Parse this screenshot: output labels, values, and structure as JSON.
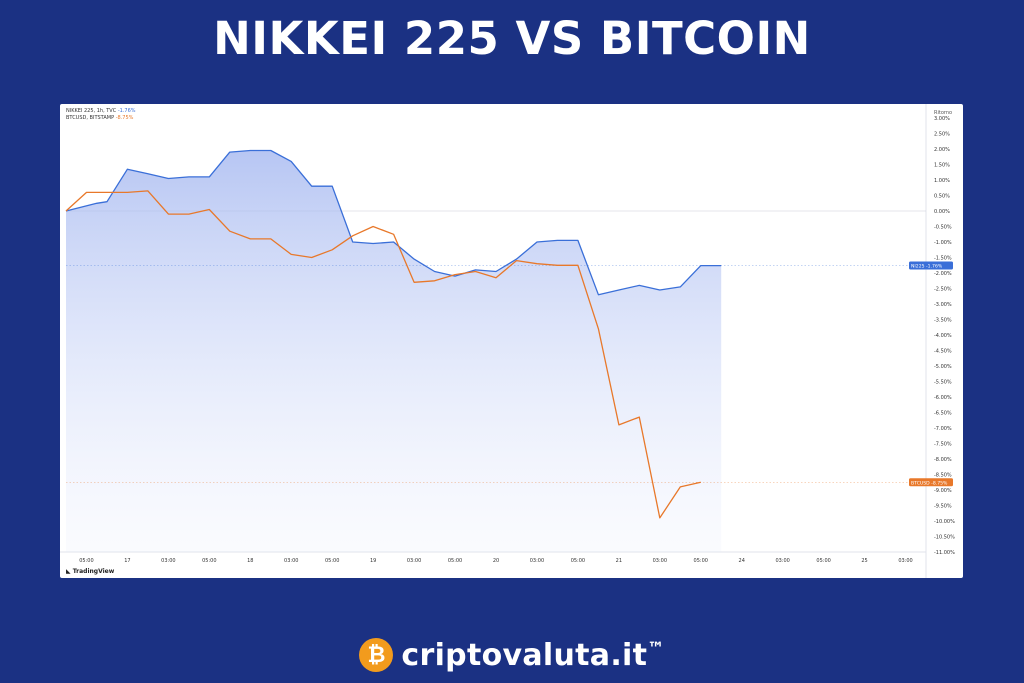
{
  "title": "NIKKEI 225 VS BITCOIN",
  "legend": {
    "series_a": "NIKKEI 225, 1h, TVC",
    "series_a_value": "-1.76%",
    "series_b": "BTCUSD, BITSTAMP",
    "series_b_value": "-8.75%"
  },
  "tv_label": "TradingView",
  "brand": {
    "name": "criptovaluta.it",
    "tm": "™",
    "icon": "bitcoin-coin-icon"
  },
  "colors": {
    "nikkei": "#3a6fd8",
    "bitcoin": "#e8782a",
    "background": "#1b3183"
  },
  "chart_data": {
    "type": "line",
    "x_ticks": [
      "05:00",
      "17",
      "03:00",
      "05:00",
      "18",
      "03:00",
      "05:00",
      "19",
      "03:00",
      "05:00",
      "20",
      "03:00",
      "05:00",
      "21",
      "03:00",
      "05:00",
      "24",
      "03:00",
      "05:00",
      "25",
      "03:00"
    ],
    "y_axis_title": "Ritorno",
    "ylim": [
      -11.0,
      3.0
    ],
    "y_ticks": [
      "3.00%",
      "2.50%",
      "2.00%",
      "1.50%",
      "1.00%",
      "0.50%",
      "0.00%",
      "-0.50%",
      "-1.00%",
      "-1.50%",
      "-2.00%",
      "-2.50%",
      "-3.00%",
      "-3.50%",
      "-4.00%",
      "-4.50%",
      "-5.00%",
      "-5.50%",
      "-6.00%",
      "-6.50%",
      "-7.00%",
      "-7.50%",
      "-8.00%",
      "-8.50%",
      "-9.00%",
      "-9.50%",
      "-10.00%",
      "-10.50%",
      "-11.00%"
    ],
    "x_tick_index": [
      1,
      3,
      5,
      7,
      9,
      11,
      13,
      15,
      17,
      19,
      21,
      23,
      25,
      27,
      29,
      31,
      33,
      35,
      37,
      39,
      41
    ],
    "series": [
      {
        "name": "NIKKEI 225",
        "badge": "NI225",
        "last_label": "-1.76%",
        "x": [
          0,
          1.5,
          2,
          3,
          4,
          5,
          6,
          7,
          8,
          9,
          10,
          11,
          12,
          13,
          14,
          15,
          16,
          17,
          18,
          19,
          20,
          21,
          22,
          23,
          24,
          25,
          26,
          27,
          28,
          29,
          30,
          31,
          32
        ],
        "values": [
          0.0,
          0.25,
          0.3,
          1.35,
          1.2,
          1.05,
          1.1,
          1.1,
          1.9,
          1.95,
          1.95,
          1.6,
          0.8,
          0.8,
          -1.0,
          -1.05,
          -1.0,
          -1.55,
          -1.95,
          -2.1,
          -1.9,
          -1.95,
          -1.55,
          -1.0,
          -0.95,
          -0.95,
          -2.7,
          -2.55,
          -2.4,
          -2.55,
          -2.45,
          -1.76,
          -1.76
        ]
      },
      {
        "name": "BTCUSD",
        "badge": "BTCUSD",
        "last_label": "-8.75%",
        "x": [
          0,
          1,
          2,
          3,
          4,
          5,
          6,
          7,
          8,
          9,
          10,
          11,
          12,
          13,
          14,
          15,
          16,
          17,
          18,
          19,
          20,
          21,
          22,
          23,
          24,
          25,
          26,
          27,
          28,
          29,
          30,
          31
        ],
        "values": [
          0.0,
          0.6,
          0.6,
          0.6,
          0.65,
          -0.1,
          -0.1,
          0.05,
          -0.65,
          -0.9,
          -0.9,
          -1.4,
          -1.5,
          -1.25,
          -0.8,
          -0.5,
          -0.75,
          -2.3,
          -2.25,
          -2.05,
          -1.95,
          -2.15,
          -1.6,
          -1.7,
          -1.75,
          -1.75,
          -3.8,
          -6.9,
          -6.65,
          -9.9,
          -8.9,
          -8.75
        ]
      }
    ],
    "x_domain": [
      0,
      42
    ]
  }
}
